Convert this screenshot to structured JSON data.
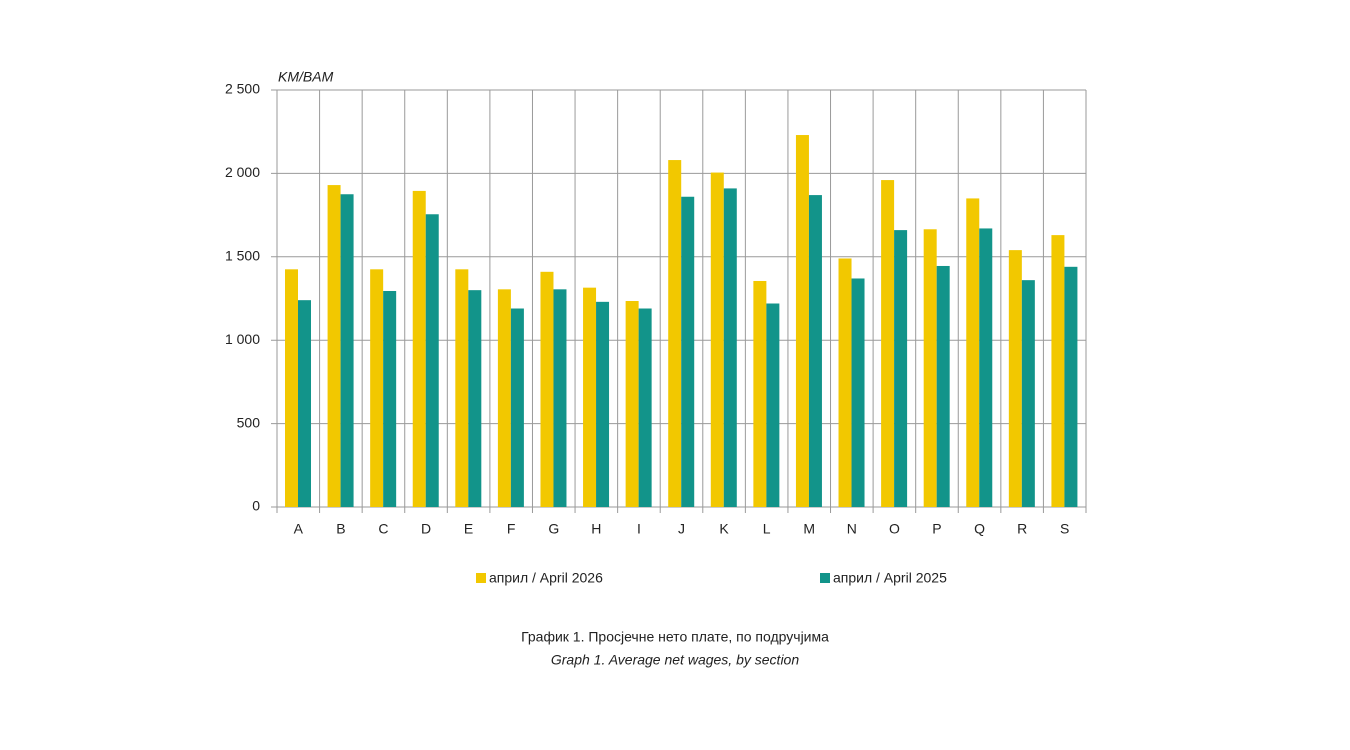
{
  "chart_data": {
    "type": "bar",
    "y_axis_label": "KM/BAM",
    "caption": "График 1. Просјечне нето плате, по подручјима",
    "caption_en": "Graph 1. Average net wages, by section",
    "categories": [
      "A",
      "B",
      "C",
      "D",
      "E",
      "F",
      "G",
      "H",
      "I",
      "J",
      "K",
      "L",
      "M",
      "N",
      "O",
      "P",
      "Q",
      "R",
      "S"
    ],
    "series": [
      {
        "name": "април / April 2026",
        "color": "#f2c800",
        "values": [
          1425,
          1930,
          1425,
          1895,
          1425,
          1305,
          1410,
          1315,
          1235,
          2080,
          2005,
          1355,
          2230,
          1490,
          1960,
          1665,
          1850,
          1540,
          1630
        ]
      },
      {
        "name": "април / April 2025",
        "color": "#12948a",
        "values": [
          1240,
          1875,
          1295,
          1755,
          1300,
          1190,
          1305,
          1230,
          1190,
          1860,
          1910,
          1220,
          1870,
          1370,
          1660,
          1445,
          1670,
          1360,
          1440
        ]
      }
    ],
    "ylim": [
      0,
      2500
    ],
    "yticks": [
      0,
      500,
      {
        "value": 1000,
        "label": "1 000"
      },
      {
        "value": 1500,
        "label": "1 500"
      },
      {
        "value": 2000,
        "label": "2 000"
      },
      {
        "value": 2500,
        "label": "2 500"
      }
    ],
    "grid": true,
    "legend": "bottom"
  }
}
